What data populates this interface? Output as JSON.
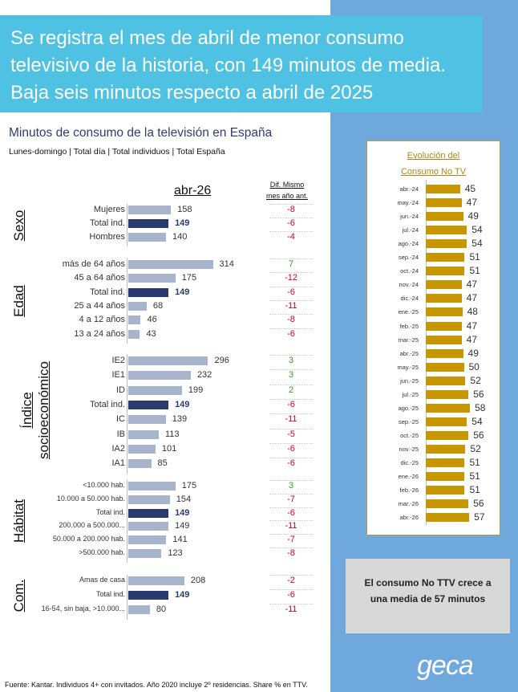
{
  "headline": [
    "Se registra el mes de abril de menor consumo",
    "televisivo de la historia, con 149 minutos de media.",
    "Baja seis minutos respecto a abril de 2025"
  ],
  "subtitle": "Minutos de consumo de la televisión en España",
  "subtitle2": "Lunes-domingo | Total día | Total individuos | Total España",
  "period_label": "abr-26",
  "dif_header": [
    "Dif. Mismo",
    "mes año ant."
  ],
  "chart_data": [
    {
      "type": "bar",
      "title": "Minutos de consumo de la televisión en España",
      "series_label": "abr-26",
      "groups": [
        {
          "name": "Sexo",
          "categories": [
            "Mujeres",
            "Total ind.",
            "Hombres"
          ],
          "values": [
            158,
            149,
            140
          ],
          "dif": [
            "-8",
            "-6",
            "-4"
          ]
        },
        {
          "name": "Edad",
          "categories": [
            "más de 64 años",
            "45 a 64 años",
            "Total ind.",
            "25 a 44 años",
            "4 a 12 años",
            "13 a 24 años"
          ],
          "values": [
            314,
            175,
            149,
            68,
            46,
            43
          ],
          "dif": [
            "7",
            "-12",
            "-6",
            "-11",
            "-8",
            "-6"
          ]
        },
        {
          "name": "Índice socioeconómico",
          "categories": [
            "IE2",
            "IE1",
            "ID",
            "Total ind.",
            "IC",
            "IB",
            "IA2",
            "IA1"
          ],
          "values": [
            296,
            232,
            199,
            149,
            139,
            113,
            101,
            85
          ],
          "dif": [
            "3",
            "3",
            "2",
            "-6",
            "-11",
            "-5",
            "-6",
            "-6"
          ]
        },
        {
          "name": "Hábitat",
          "categories": [
            "<10.000 hab.",
            "10.000 a 50.000 hab.",
            "Total ind.",
            "200.000 a 500.000...",
            "50.000 a 200.000 hab.",
            ">500.000 hab."
          ],
          "values": [
            175,
            154,
            149,
            149,
            141,
            123
          ],
          "dif": [
            "3",
            "-7",
            "-6",
            "-11",
            "-7",
            "-8"
          ]
        },
        {
          "name": "Com.",
          "categories": [
            "Amas de casa",
            "Total ind.",
            "16-54, sin baja, >10.000..."
          ],
          "values": [
            208,
            149,
            80
          ],
          "dif": [
            "-2",
            "-6",
            "-11"
          ]
        }
      ]
    },
    {
      "type": "bar",
      "title": "Evolución del Consumo No TV",
      "categories": [
        "abr.-24",
        "may.-24",
        "jun.-24",
        "jul.-24",
        "ago.-24",
        "sep.-24",
        "oct.-24",
        "nov.-24",
        "dic.-24",
        "ene.-25",
        "feb.-25",
        "mar.-25",
        "abr.-25",
        "may.-25",
        "jun.-25",
        "jul.-25",
        "ago.-25",
        "sep.-25",
        "oct.-25",
        "nov.-25",
        "dic.-25",
        "ene.-26",
        "feb.-26",
        "mar.-26",
        "abr.-26"
      ],
      "values": [
        45,
        47,
        49,
        54,
        54,
        51,
        51,
        47,
        47,
        48,
        47,
        47,
        49,
        50,
        52,
        56,
        58,
        54,
        56,
        52,
        51,
        51,
        51,
        56,
        57
      ]
    }
  ],
  "no_tv_title": [
    "Evolución del",
    "Consumo No TV"
  ],
  "callout": [
    "El consumo No TTV crece a",
    "una media de 57 minutos"
  ],
  "logo": "geca",
  "footer": "Fuente: Kantar. Individuos 4+ con invitados. Año 2020 incluye 2º residencias. Share % en TTV.",
  "colors": {
    "headline_bg": "#4fc1e3",
    "right_panel": "#6fa8dc",
    "bar": "#a8b4cb",
    "bar_total": "#2b3a6e",
    "no_tv_bar": "#c89600",
    "neg": "#d0021b",
    "pos": "#3a9a22"
  }
}
